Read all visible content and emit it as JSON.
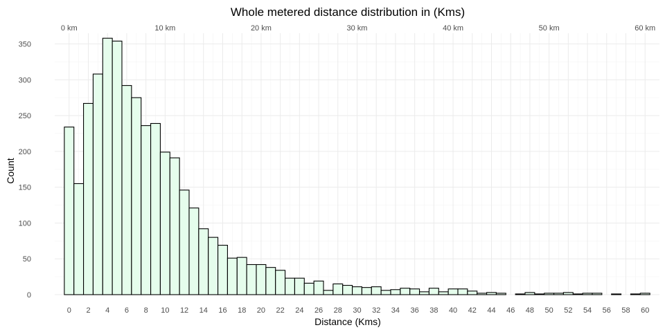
{
  "chart_data": {
    "type": "bar",
    "title": "Whole metered distance distribution in (Kms)",
    "xlabel": "Distance (Kms)",
    "ylabel": "Count",
    "bin_width": 1,
    "bin_start": -0.5,
    "values": [
      234,
      155,
      267,
      308,
      358,
      354,
      292,
      275,
      236,
      239,
      199,
      191,
      146,
      121,
      92,
      80,
      69,
      51,
      52,
      42,
      42,
      38,
      34,
      23,
      23,
      16,
      19,
      6,
      15,
      13,
      11,
      10,
      11,
      6,
      7,
      9,
      8,
      4,
      9,
      4,
      8,
      8,
      5,
      2,
      3,
      2,
      0,
      1,
      3,
      1,
      2,
      2,
      3,
      1,
      2,
      2,
      0,
      1,
      0,
      1,
      2
    ],
    "xlim": [
      -1.5,
      61.5
    ],
    "ylim": [
      0,
      365
    ],
    "x_ticks": [
      0,
      2,
      4,
      6,
      8,
      10,
      12,
      14,
      16,
      18,
      20,
      22,
      24,
      26,
      28,
      30,
      32,
      34,
      36,
      38,
      40,
      42,
      44,
      46,
      48,
      50,
      52,
      54,
      56,
      58,
      60
    ],
    "y_ticks": [
      0,
      50,
      100,
      150,
      200,
      250,
      300,
      350
    ],
    "secondary_x_axis": {
      "position": "top",
      "ticks": [
        0,
        10,
        20,
        30,
        40,
        50,
        60
      ],
      "labels": [
        "0 km",
        "10 km",
        "20 km",
        "30 km",
        "40 km",
        "50 km",
        "60 km"
      ]
    },
    "grid": true,
    "legend": "none",
    "colors": {
      "bar_fill": "#e5fdec",
      "bar_stroke": "#000000",
      "grid": "#ebebeb",
      "tick_text": "#4d4d4d"
    }
  }
}
